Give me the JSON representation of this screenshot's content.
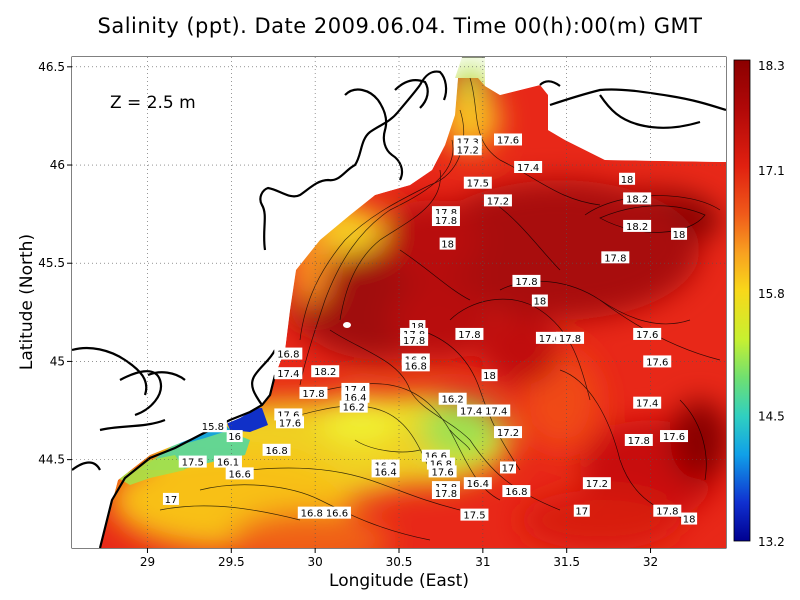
{
  "title": "Salinity (ppt). Date 2009.06.04. Time 00(h):00(m) GMT",
  "depth_label": "Z = 2.5 m",
  "x_axis": {
    "label": "Longitude (East)",
    "range": [
      28.55,
      32.45
    ],
    "ticks": [
      "29",
      "29.5",
      "30",
      "30.5",
      "31",
      "31.5",
      "32"
    ],
    "tick_values": [
      29,
      29.5,
      30,
      30.5,
      31,
      31.5,
      32
    ]
  },
  "y_axis": {
    "label": "Latitude (North)",
    "range": [
      44.05,
      46.55
    ],
    "ticks": [
      "44.5",
      "45",
      "45.5",
      "46",
      "46.5"
    ],
    "tick_values": [
      44.5,
      45,
      45.5,
      46,
      46.5
    ]
  },
  "colorbar": {
    "labels": [
      "18.3",
      "17.1",
      "15.8",
      "14.5",
      "13.2"
    ],
    "values": [
      18.3,
      17.1,
      15.8,
      14.5,
      13.2
    ],
    "colors": [
      "#8b0000",
      "#c81010",
      "#f03a1a",
      "#f87a1e",
      "#f8c81a",
      "#e8f030",
      "#a0e048",
      "#40d8a0",
      "#10b0e8",
      "#1040d8",
      "#000090"
    ]
  },
  "contour_labels": [
    {
      "text": "17.3",
      "lon": 30.91,
      "lat": 46.12
    },
    {
      "text": "17.2",
      "lon": 30.91,
      "lat": 46.08
    },
    {
      "text": "17.6",
      "lon": 31.15,
      "lat": 46.13
    },
    {
      "text": "17.4",
      "lon": 31.27,
      "lat": 45.99
    },
    {
      "text": "17.5",
      "lon": 30.97,
      "lat": 45.91
    },
    {
      "text": "17.2",
      "lon": 31.09,
      "lat": 45.82
    },
    {
      "text": "18",
      "lon": 31.86,
      "lat": 45.93
    },
    {
      "text": "18.2",
      "lon": 31.92,
      "lat": 45.83
    },
    {
      "text": "17.8",
      "lon": 30.78,
      "lat": 45.76
    },
    {
      "text": "17.8",
      "lon": 30.78,
      "lat": 45.72
    },
    {
      "text": "18.2",
      "lon": 31.92,
      "lat": 45.69
    },
    {
      "text": "18",
      "lon": 32.17,
      "lat": 45.65
    },
    {
      "text": "18",
      "lon": 30.79,
      "lat": 45.6
    },
    {
      "text": "17.8",
      "lon": 31.79,
      "lat": 45.53
    },
    {
      "text": "17.8",
      "lon": 31.26,
      "lat": 45.41
    },
    {
      "text": "18",
      "lon": 31.34,
      "lat": 45.31
    },
    {
      "text": "18",
      "lon": 30.61,
      "lat": 45.18
    },
    {
      "text": "17.8",
      "lon": 30.59,
      "lat": 45.14
    },
    {
      "text": "17.8",
      "lon": 30.59,
      "lat": 45.11
    },
    {
      "text": "17.8",
      "lon": 30.92,
      "lat": 45.14
    },
    {
      "text": "17.6",
      "lon": 31.4,
      "lat": 45.12
    },
    {
      "text": "17.8",
      "lon": 31.52,
      "lat": 45.12
    },
    {
      "text": "17.6",
      "lon": 31.98,
      "lat": 45.14
    },
    {
      "text": "17.6",
      "lon": 32.04,
      "lat": 45.0
    },
    {
      "text": "16.8",
      "lon": 29.84,
      "lat": 45.04
    },
    {
      "text": "16.8",
      "lon": 30.6,
      "lat": 45.01
    },
    {
      "text": "16.8",
      "lon": 30.6,
      "lat": 44.98
    },
    {
      "text": "18.2",
      "lon": 30.06,
      "lat": 44.95
    },
    {
      "text": "17.4",
      "lon": 29.84,
      "lat": 44.94
    },
    {
      "text": "18",
      "lon": 31.04,
      "lat": 44.93
    },
    {
      "text": "17.8",
      "lon": 29.99,
      "lat": 44.84
    },
    {
      "text": "17.4",
      "lon": 30.24,
      "lat": 44.86
    },
    {
      "text": "16.4",
      "lon": 30.24,
      "lat": 44.82
    },
    {
      "text": "16.2",
      "lon": 30.23,
      "lat": 44.77
    },
    {
      "text": "16.2",
      "lon": 30.82,
      "lat": 44.81
    },
    {
      "text": "17.4",
      "lon": 30.93,
      "lat": 44.75
    },
    {
      "text": "17.4",
      "lon": 31.08,
      "lat": 44.75
    },
    {
      "text": "17.4",
      "lon": 31.98,
      "lat": 44.79
    },
    {
      "text": "17.6",
      "lon": 29.84,
      "lat": 44.73
    },
    {
      "text": "17.6",
      "lon": 29.85,
      "lat": 44.69
    },
    {
      "text": "15.8",
      "lon": 29.39,
      "lat": 44.67
    },
    {
      "text": "16",
      "lon": 29.52,
      "lat": 44.62
    },
    {
      "text": "17.2",
      "lon": 31.15,
      "lat": 44.64
    },
    {
      "text": "17.6",
      "lon": 32.14,
      "lat": 44.62
    },
    {
      "text": "17.8",
      "lon": 31.93,
      "lat": 44.6
    },
    {
      "text": "16.8",
      "lon": 29.77,
      "lat": 44.55
    },
    {
      "text": "16.6",
      "lon": 30.72,
      "lat": 44.52
    },
    {
      "text": "16.8",
      "lon": 30.75,
      "lat": 44.48
    },
    {
      "text": "17.6",
      "lon": 30.76,
      "lat": 44.44
    },
    {
      "text": "16.2",
      "lon": 30.42,
      "lat": 44.47
    },
    {
      "text": "16.4",
      "lon": 30.42,
      "lat": 44.44
    },
    {
      "text": "17.5",
      "lon": 29.27,
      "lat": 44.49
    },
    {
      "text": "16.1",
      "lon": 29.48,
      "lat": 44.49
    },
    {
      "text": "16.6",
      "lon": 29.55,
      "lat": 44.43
    },
    {
      "text": "17",
      "lon": 31.15,
      "lat": 44.46
    },
    {
      "text": "17.2",
      "lon": 31.68,
      "lat": 44.38
    },
    {
      "text": "17.8",
      "lon": 30.78,
      "lat": 44.36
    },
    {
      "text": "16.4",
      "lon": 30.97,
      "lat": 44.38
    },
    {
      "text": "17.8",
      "lon": 30.78,
      "lat": 44.33
    },
    {
      "text": "16.8",
      "lon": 31.2,
      "lat": 44.34
    },
    {
      "text": "17",
      "lon": 29.14,
      "lat": 44.3
    },
    {
      "text": "17",
      "lon": 31.59,
      "lat": 44.24
    },
    {
      "text": "17.8",
      "lon": 32.1,
      "lat": 44.24
    },
    {
      "text": "17.5",
      "lon": 30.95,
      "lat": 44.22
    },
    {
      "text": "18",
      "lon": 32.23,
      "lat": 44.2
    },
    {
      "text": "16.8",
      "lon": 29.98,
      "lat": 44.23
    },
    {
      "text": "16.6",
      "lon": 30.13,
      "lat": 44.23
    }
  ]
}
